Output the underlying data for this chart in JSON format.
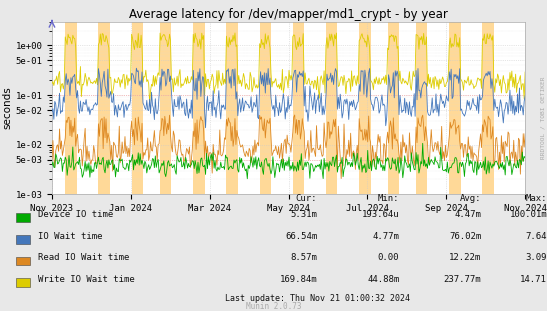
{
  "title": "Average latency for /dev/mapper/md1_crypt - by year",
  "ylabel": "seconds",
  "right_label": "RRDTOOL / TOBI OETIKER",
  "bg_color": "#e8e8e8",
  "plot_bg_color": "#ffffff",
  "legend_entries": [
    {
      "label": "Device IO time",
      "color": "#00aa00"
    },
    {
      "label": "IO Wait time",
      "color": "#4477bb"
    },
    {
      "label": "Read IO Wait time",
      "color": "#dd8822"
    },
    {
      "label": "Write IO Wait time",
      "color": "#ddcc00"
    }
  ],
  "table_headers": [
    "Cur:",
    "Min:",
    "Avg:",
    "Max:"
  ],
  "table_data": [
    [
      "5.31m",
      "193.64u",
      "4.47m",
      "100.01m"
    ],
    [
      "66.54m",
      "4.77m",
      "76.02m",
      "7.64"
    ],
    [
      "8.57m",
      "0.00",
      "12.22m",
      "3.09"
    ],
    [
      "169.84m",
      "44.88m",
      "237.77m",
      "14.71"
    ]
  ],
  "last_update": "Last update: Thu Nov 21 01:00:32 2024",
  "munin_version": "Munin 2.0.73",
  "spike_color": "#ffbb44",
  "xticklabels": [
    "Nov 2023",
    "Jan 2024",
    "Mar 2024",
    "May 2024",
    "Jul 2024",
    "Sep 2024",
    "Nov 2024"
  ],
  "ytick_vals": [
    0.001,
    0.005,
    0.01,
    0.05,
    0.1,
    0.5,
    1.0
  ],
  "ytick_labs": [
    "1e-03",
    "5e-03",
    "1e-02",
    "5e-02",
    "1e-01",
    "5e-01",
    "1e+00"
  ]
}
